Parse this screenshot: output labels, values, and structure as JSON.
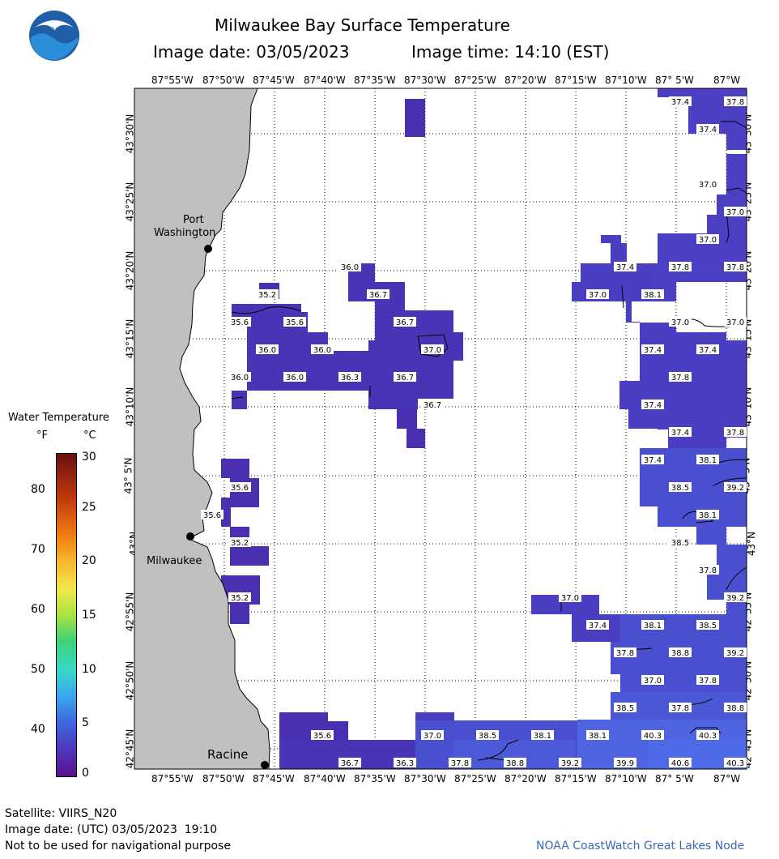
{
  "header": {
    "title": "Milwaukee Bay Surface Temperature",
    "image_date": "Image date: 03/05/2023",
    "image_time": "Image time: 14:10 (EST)"
  },
  "logo": {
    "text": "NOAA",
    "icon": "noaa-logo-icon"
  },
  "axes": {
    "lon_labels": [
      "87°55'W",
      "87°50'W",
      "87°45'W",
      "87°40'W",
      "87°35'W",
      "87°30'W",
      "87°25'W",
      "87°20'W",
      "87°15'W",
      "87°10'W",
      "87° 5'W",
      "87°W"
    ],
    "lat_labels": [
      "43°30'N",
      "43°25'N",
      "43°20'N",
      "43°15'N",
      "43°10'N",
      "43° 5'N",
      "43°N",
      "42°55'N",
      "42°50'N",
      "42°45'N"
    ]
  },
  "places": {
    "port_washington_line1": "Port",
    "port_washington_line2": "Washington",
    "milwaukee": "Milwaukee",
    "racine": "Racine"
  },
  "legend": {
    "title": "Water Temperature",
    "f_unit": "°F",
    "c_unit": "°C",
    "f_ticks": [
      "80",
      "70",
      "60",
      "50",
      "40"
    ],
    "c_ticks": [
      "30",
      "25",
      "20",
      "15",
      "10",
      "5",
      "0"
    ],
    "colors": [
      "#6a0f0f",
      "#c03a0c",
      "#f07b12",
      "#f7b52a",
      "#f2e84a",
      "#a8e33f",
      "#3fd276",
      "#38d8c8",
      "#3aa8ee",
      "#3d6ae0",
      "#4a3fc6",
      "#5a23a8",
      "#5a0f8c"
    ]
  },
  "temperature_labels": [
    "37.4",
    "37.8",
    "37.4",
    "37.0",
    "37.0",
    "37.0",
    "36.0",
    "36.7",
    "35.2",
    "37.4",
    "37.8",
    "37.8",
    "37.0",
    "38.1",
    "35.6",
    "35.6",
    "36.7",
    "37.0",
    "37.0",
    "36.0",
    "36.0",
    "37.0",
    "37.4",
    "37.4",
    "36.0",
    "36.0",
    "36.3",
    "36.7",
    "37.8",
    "36.7",
    "37.4",
    "37.4",
    "37.8",
    "37.4",
    "38.1",
    "35.6",
    "38.5",
    "39.2",
    "35.6",
    "38.1",
    "35.2",
    "38.5",
    "37.8",
    "35.2",
    "39.2",
    "37.0",
    "37.4",
    "38.1",
    "38.5",
    "37.8",
    "38.8",
    "39.2",
    "37.0",
    "37.8",
    "38.5",
    "37.8",
    "38.8",
    "35.6",
    "37.0",
    "38.5",
    "38.1",
    "38.1",
    "40.3",
    "40.3",
    "36.7",
    "36.3",
    "37.8",
    "38.8",
    "39.2",
    "39.9",
    "40.6",
    "40.3"
  ],
  "footer": {
    "satellite": "Satellite: VIIRS_N20",
    "utc_date": "Image date: (UTC) 03/05/2023  19:10",
    "warning": "Not to be used for navigational purpose",
    "credit": "NOAA CoastWatch Great Lakes Node"
  }
}
